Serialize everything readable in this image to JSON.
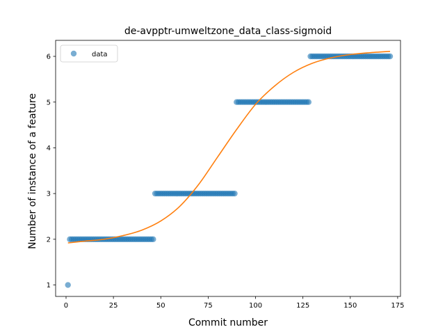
{
  "chart_data": {
    "type": "scatter",
    "title": "de-avpptr-umweltzone_data_class-sigmoid",
    "xlabel": "Commit number",
    "ylabel": "Number of instance of a feature",
    "xlim": [
      -5.5,
      176.5
    ],
    "ylim": [
      0.75,
      6.35
    ],
    "xticks": [
      0,
      25,
      50,
      75,
      100,
      125,
      150,
      175
    ],
    "yticks": [
      1,
      2,
      3,
      4,
      5,
      6
    ],
    "grid": false,
    "legend": {
      "position": "top-left",
      "entries": [
        "data"
      ]
    },
    "colors": {
      "data": "#1f77b4",
      "fit": "#ff7f0e"
    },
    "series": [
      {
        "name": "data",
        "kind": "scatter",
        "segments": [
          {
            "x_start": 1,
            "x_end": 1,
            "y": 1
          },
          {
            "x_start": 2,
            "x_end": 46,
            "y": 2
          },
          {
            "x_start": 47,
            "x_end": 89,
            "y": 3
          },
          {
            "x_start": 90,
            "x_end": 128,
            "y": 5
          },
          {
            "x_start": 129,
            "x_end": 171,
            "y": 6
          }
        ]
      },
      {
        "name": "",
        "kind": "line",
        "x": [
          1,
          10,
          20,
          30,
          40,
          50,
          60,
          70,
          80,
          90,
          100,
          110,
          120,
          130,
          140,
          150,
          160,
          171
        ],
        "y": [
          1.92,
          1.96,
          2.0,
          2.08,
          2.2,
          2.4,
          2.72,
          3.2,
          3.8,
          4.4,
          4.95,
          5.35,
          5.65,
          5.85,
          5.97,
          6.04,
          6.08,
          6.11
        ]
      }
    ]
  }
}
